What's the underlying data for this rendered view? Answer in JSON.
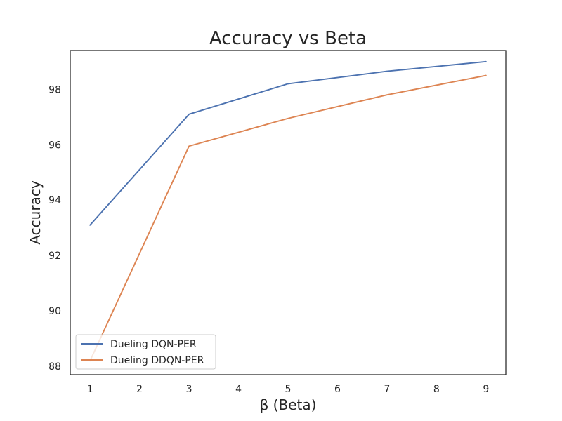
{
  "chart_data": {
    "type": "line",
    "title": "Accuracy vs Beta",
    "xlabel": "β (Beta)",
    "ylabel": "Accuracy",
    "x": [
      1,
      3,
      5,
      7,
      9
    ],
    "xlim": [
      0.6,
      9.4
    ],
    "ylim": [
      87.7,
      99.4
    ],
    "xticks": [
      1,
      2,
      3,
      4,
      5,
      6,
      7,
      8,
      9
    ],
    "yticks": [
      88,
      90,
      92,
      94,
      96,
      98
    ],
    "grid": false,
    "legend_position": "lower-left",
    "series": [
      {
        "name": "Dueling DQN-PER",
        "color": "#4c72b0",
        "values": [
          93.1,
          97.1,
          98.2,
          98.65,
          99.0
        ]
      },
      {
        "name": "Dueling DDQN-PER",
        "color": "#dd8452",
        "values": [
          88.2,
          95.95,
          96.95,
          97.8,
          98.5
        ]
      }
    ]
  }
}
